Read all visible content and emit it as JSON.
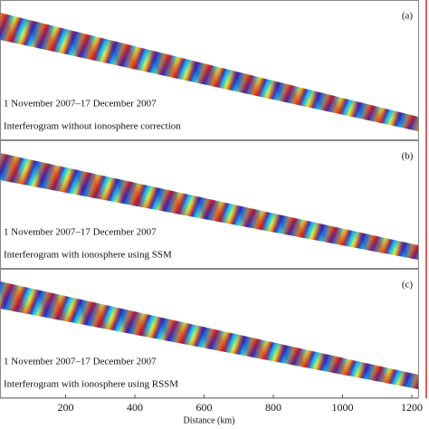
{
  "figure": {
    "panels": [
      {
        "label": "(a)",
        "date": "1 November 2007–17 December 2007",
        "caption": "Interferogram without ionosphere correction"
      },
      {
        "label": "(b)",
        "date": "1 November 2007–17 December 2007",
        "caption": "Interferogram with ionosphere using SSM"
      },
      {
        "label": "(c)",
        "date": "1 November 2007–17 December 2007",
        "caption": "Interferogram with ionosphere using RSSM"
      }
    ],
    "x_axis": {
      "label": "Distance (km)",
      "xlim": [
        0,
        1200
      ],
      "xticks": [
        200,
        400,
        600,
        800,
        1000,
        1200
      ]
    }
  }
}
